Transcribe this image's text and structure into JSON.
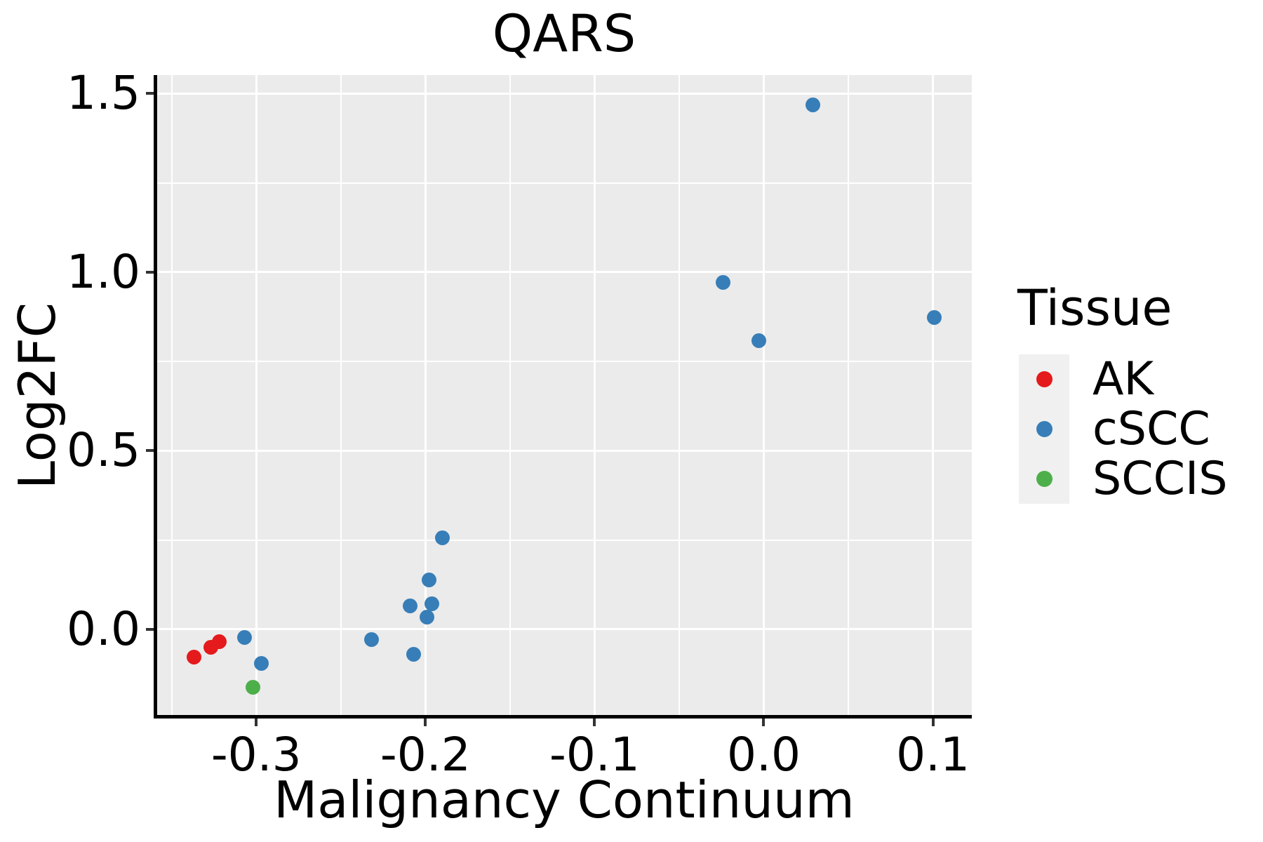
{
  "title": "QARS",
  "x_axis": {
    "label": "Malignancy Continuum",
    "ticks": [
      {
        "v": -0.3,
        "label": "-0.3"
      },
      {
        "v": -0.2,
        "label": "-0.2"
      },
      {
        "v": -0.1,
        "label": "-0.1"
      },
      {
        "v": 0.0,
        "label": "0.0"
      },
      {
        "v": 0.1,
        "label": "0.1"
      }
    ],
    "minor_ticks": [
      -0.35,
      -0.25,
      -0.15,
      -0.05,
      0.05
    ]
  },
  "y_axis": {
    "label": "Log2FC",
    "ticks": [
      {
        "v": 0.0,
        "label": "0.0"
      },
      {
        "v": 0.5,
        "label": "0.5"
      },
      {
        "v": 1.0,
        "label": "1.0"
      },
      {
        "v": 1.5,
        "label": "1.5"
      }
    ],
    "minor_ticks": [
      0.25,
      0.75,
      1.25
    ]
  },
  "legend": {
    "title": "Tissue",
    "entries": [
      {
        "label": "AK",
        "color": "#E41A1C"
      },
      {
        "label": "cSCC",
        "color": "#377EB8"
      },
      {
        "label": "SCCIS",
        "color": "#4DAF4A"
      }
    ]
  },
  "colors": {
    "panel_background": "#EBEBEB",
    "gridline": "#ffffff",
    "axis_line": "#000000",
    "tick_mark": "#333333",
    "legend_key_background": "#F0F0F0",
    "ak_red": "#E41A1C",
    "cscc_blue": "#377EB8",
    "sccis_green": "#4DAF4A"
  },
  "chart_data": {
    "type": "scatter",
    "title": "QARS",
    "xlabel": "Malignancy Continuum",
    "ylabel": "Log2FC",
    "xlim": [
      -0.359,
      0.123
    ],
    "ylim": [
      -0.244,
      1.552
    ],
    "grid": true,
    "legend_position": "right",
    "x_major_ticks": [
      -0.3,
      -0.2,
      -0.1,
      0.0,
      0.1
    ],
    "y_major_ticks": [
      0.0,
      0.5,
      1.0,
      1.5
    ],
    "series": [
      {
        "name": "AK",
        "color": "#E41A1C",
        "points": [
          [
            -0.337,
            -0.077
          ],
          [
            -0.327,
            -0.05
          ],
          [
            -0.322,
            -0.034
          ]
        ]
      },
      {
        "name": "cSCC",
        "color": "#377EB8",
        "points": [
          [
            -0.307,
            -0.023
          ],
          [
            -0.297,
            -0.095
          ],
          [
            -0.232,
            -0.028
          ],
          [
            -0.209,
            0.066
          ],
          [
            -0.207,
            -0.071
          ],
          [
            -0.199,
            0.034
          ],
          [
            -0.198,
            0.139
          ],
          [
            -0.196,
            0.071
          ],
          [
            -0.19,
            0.257
          ],
          [
            -0.024,
            0.972
          ],
          [
            -0.003,
            0.809
          ],
          [
            0.029,
            1.469
          ],
          [
            0.101,
            0.873
          ]
        ]
      },
      {
        "name": "SCCIS",
        "color": "#4DAF4A",
        "points": [
          [
            -0.302,
            -0.162
          ]
        ]
      }
    ]
  }
}
